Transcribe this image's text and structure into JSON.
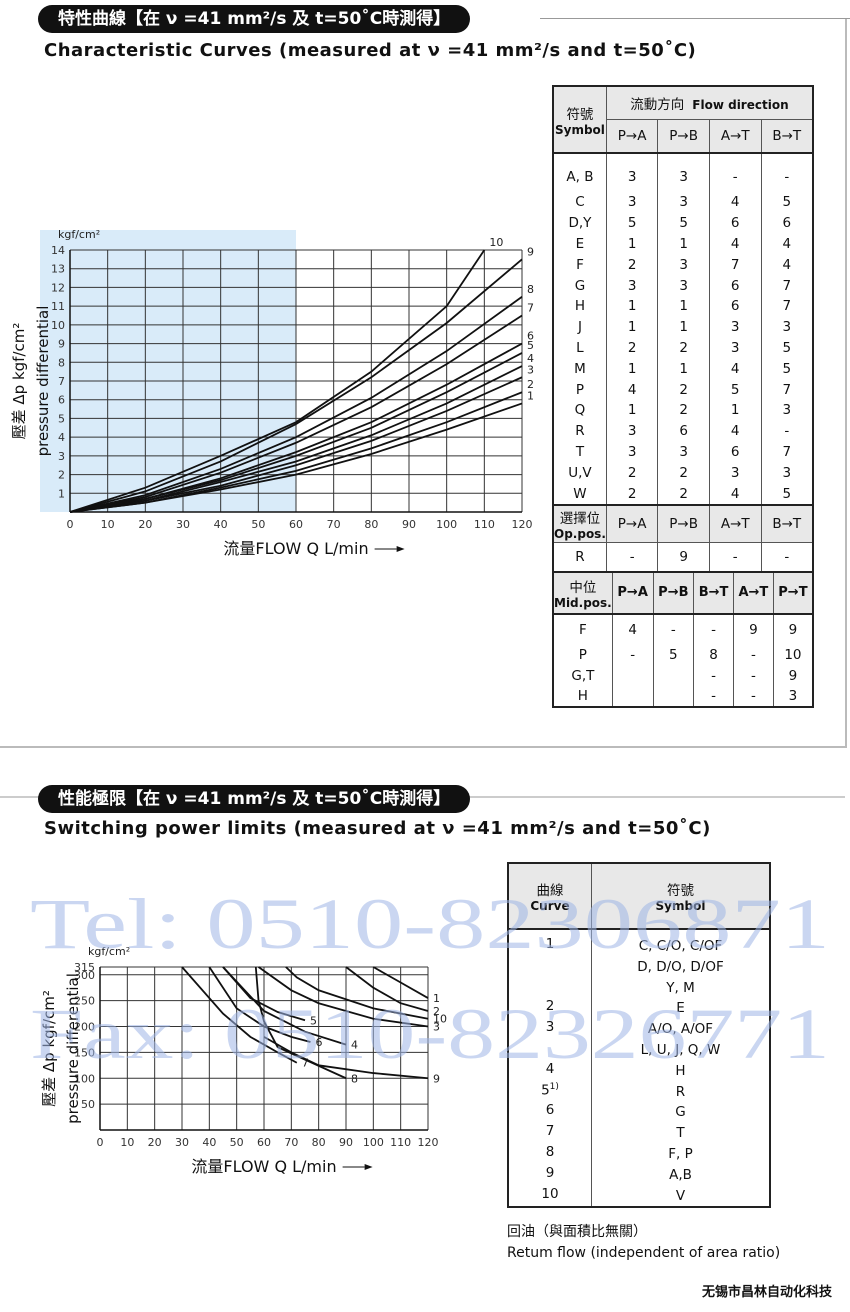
{
  "section1": {
    "heading": "特性曲線【在 ν =41 mm²/s 及 t=50˚C時測得】",
    "title": "Characteristic Curves (measured at ν =41 mm²/s and t=50˚C)",
    "chart": {
      "type": "line",
      "unit": "kgf/cm²",
      "y_label": [
        "壓差 Δp kgf/cm²",
        "pressure differential"
      ],
      "x_label": "流量FLOW Q L/min",
      "xlim": [
        0,
        120
      ],
      "ylim": [
        0,
        14
      ],
      "xticks": [
        0,
        10,
        20,
        30,
        40,
        50,
        60,
        70,
        80,
        90,
        100,
        110,
        120
      ],
      "yticks": [
        1,
        2,
        3,
        4,
        5,
        6,
        7,
        8,
        9,
        10,
        11,
        12,
        13,
        14
      ],
      "grid": true,
      "series": [
        {
          "name": "1",
          "x": [
            0,
            20,
            40,
            60,
            80,
            100,
            120
          ],
          "values": [
            0,
            0.5,
            1.2,
            2.0,
            3.1,
            4.4,
            5.8
          ]
        },
        {
          "name": "2",
          "x": [
            0,
            20,
            40,
            60,
            80,
            100,
            120
          ],
          "values": [
            0,
            0.5,
            1.3,
            2.2,
            3.4,
            4.8,
            6.4
          ]
        },
        {
          "name": "3",
          "x": [
            0,
            20,
            40,
            60,
            80,
            100,
            120
          ],
          "values": [
            0,
            0.6,
            1.4,
            2.5,
            3.8,
            5.4,
            7.2
          ]
        },
        {
          "name": "4",
          "x": [
            0,
            20,
            40,
            60,
            80,
            100,
            120
          ],
          "values": [
            0,
            0.6,
            1.6,
            2.7,
            4.1,
            5.8,
            7.8
          ]
        },
        {
          "name": "5",
          "x": [
            0,
            20,
            40,
            60,
            80,
            100,
            120
          ],
          "values": [
            0,
            0.7,
            1.7,
            3.0,
            4.5,
            6.4,
            8.5
          ]
        },
        {
          "name": "6",
          "x": [
            0,
            20,
            40,
            60,
            80,
            100,
            120
          ],
          "values": [
            0,
            0.7,
            1.8,
            3.2,
            4.8,
            6.8,
            9.0
          ]
        },
        {
          "name": "7",
          "x": [
            0,
            20,
            40,
            60,
            80,
            100,
            120
          ],
          "values": [
            0,
            0.8,
            2.1,
            3.7,
            5.6,
            7.9,
            10.5
          ]
        },
        {
          "name": "8",
          "x": [
            0,
            20,
            40,
            60,
            80,
            100,
            120
          ],
          "values": [
            0,
            0.9,
            2.3,
            4.0,
            6.1,
            8.6,
            11.5
          ]
        },
        {
          "name": "9",
          "x": [
            0,
            20,
            40,
            60,
            80,
            100,
            120
          ],
          "values": [
            0,
            1.1,
            2.7,
            4.7,
            7.2,
            10.1,
            13.5
          ]
        },
        {
          "name": "10",
          "x": [
            0,
            20,
            40,
            60,
            80,
            100,
            110
          ],
          "values": [
            0,
            1.3,
            3.0,
            4.8,
            7.5,
            11,
            14
          ]
        }
      ]
    },
    "table": {
      "symbol_header": [
        "符號",
        "Symbol"
      ],
      "flow_header": [
        "流動方向",
        "Flow direction"
      ],
      "columns": [
        "P→A",
        "P→B",
        "A→T",
        "B→T"
      ],
      "rows": [
        [
          "A, B",
          "3",
          "3",
          "-",
          "-"
        ],
        [
          "C",
          "3",
          "3",
          "4",
          "5"
        ],
        [
          "D,Y",
          "5",
          "5",
          "6",
          "6"
        ],
        [
          "E",
          "1",
          "1",
          "4",
          "4"
        ],
        [
          "F",
          "2",
          "3",
          "7",
          "4"
        ],
        [
          "G",
          "3",
          "3",
          "6",
          "7"
        ],
        [
          "H",
          "1",
          "1",
          "6",
          "7"
        ],
        [
          "J",
          "1",
          "1",
          "3",
          "3"
        ],
        [
          "L",
          "2",
          "2",
          "3",
          "5"
        ],
        [
          "M",
          "1",
          "1",
          "4",
          "5"
        ],
        [
          "P",
          "4",
          "2",
          "5",
          "7"
        ],
        [
          "Q",
          "1",
          "2",
          "1",
          "3"
        ],
        [
          "R",
          "3",
          "6",
          "4",
          "-"
        ],
        [
          "T",
          "3",
          "3",
          "6",
          "7"
        ],
        [
          "U,V",
          "2",
          "2",
          "3",
          "3"
        ],
        [
          "W",
          "2",
          "2",
          "4",
          "5"
        ]
      ],
      "op_header": [
        "選擇位",
        "Op.pos."
      ],
      "op_columns": [
        "P→A",
        "P→B",
        "A→T",
        "B→T"
      ],
      "op_rows": [
        [
          "R",
          "-",
          "9",
          "-",
          "-"
        ]
      ],
      "mid_header": [
        "中位",
        "Mid.pos."
      ],
      "mid_columns": [
        "P→A",
        "P→B",
        "B→T",
        "A→T",
        "P→T"
      ],
      "mid_rows": [
        [
          "F",
          "4",
          "-",
          "-",
          "9",
          "9"
        ],
        [
          "P",
          "-",
          "5",
          "8",
          "-",
          "10"
        ],
        [
          "G,T",
          null,
          null,
          "-",
          "-",
          "9"
        ],
        [
          "H",
          null,
          null,
          "-",
          "-",
          "3"
        ]
      ]
    }
  },
  "section2": {
    "heading": "性能極限【在 ν =41 mm²/s 及 t=50˚C時測得】",
    "title": "Switching power limits (measured at ν =41 mm²/s and t=50˚C)",
    "chart": {
      "type": "line",
      "unit": "kgf/cm²",
      "y_label": [
        "壓差 Δp kgf/cm²",
        "pressure differential"
      ],
      "x_label": "流量FLOW Q L/min",
      "xlim": [
        0,
        120
      ],
      "ylim": [
        0,
        315
      ],
      "xticks": [
        0,
        10,
        20,
        30,
        40,
        50,
        60,
        70,
        80,
        90,
        100,
        110,
        120
      ],
      "yticks": [
        50,
        100,
        150,
        200,
        250,
        300,
        315
      ],
      "grid": true,
      "series": [
        {
          "name": "1",
          "x": [
            100,
            110,
            120
          ],
          "values": [
            315,
            285,
            255
          ]
        },
        {
          "name": "2",
          "x": [
            90,
            100,
            110,
            120
          ],
          "values": [
            315,
            275,
            245,
            230
          ]
        },
        {
          "name": "3",
          "x": [
            58,
            70,
            80,
            100,
            120
          ],
          "values": [
            315,
            270,
            245,
            215,
            200
          ]
        },
        {
          "name": "4",
          "x": [
            45,
            60,
            75,
            90
          ],
          "values": [
            315,
            230,
            190,
            165
          ]
        },
        {
          "name": "5",
          "x": [
            45,
            55,
            65,
            75
          ],
          "values": [
            315,
            255,
            228,
            212
          ]
        },
        {
          "name": "6",
          "x": [
            40,
            50,
            60,
            70,
            77
          ],
          "values": [
            315,
            235,
            200,
            180,
            170
          ]
        },
        {
          "name": "7",
          "x": [
            30,
            45,
            55,
            65,
            72
          ],
          "values": [
            315,
            225,
            180,
            150,
            130
          ]
        },
        {
          "name": "8",
          "x": [
            57,
            58,
            60,
            65,
            90
          ],
          "values": [
            315,
            250,
            210,
            160,
            100
          ]
        },
        {
          "name": "9",
          "x": [
            60,
            70,
            80,
            100,
            120
          ],
          "values": [
            180,
            150,
            125,
            110,
            100
          ]
        },
        {
          "name": "10",
          "x": [
            68,
            72,
            80,
            100,
            120
          ],
          "values": [
            315,
            295,
            270,
            235,
            215
          ]
        }
      ]
    },
    "table": {
      "curve_header": [
        "曲線",
        "Curve"
      ],
      "symbol_header": [
        "符號",
        "Symbol"
      ],
      "rows": [
        {
          "curve": "1",
          "symbols": [
            "C, C/O, C/OF",
            "D, D/O, D/OF",
            "Y, M"
          ]
        },
        {
          "curve": "2",
          "symbols": [
            "E"
          ]
        },
        {
          "curve": "3",
          "symbols": [
            "A/O, A/OF",
            "L, U, J, Q, W"
          ]
        },
        {
          "curve": "4",
          "symbols": [
            "H"
          ]
        },
        {
          "curve": "5",
          "note": "1)",
          "symbols": [
            "R"
          ]
        },
        {
          "curve": "6",
          "symbols": [
            "G"
          ]
        },
        {
          "curve": "7",
          "symbols": [
            "T"
          ]
        },
        {
          "curve": "8",
          "symbols": [
            "F, P"
          ]
        },
        {
          "curve": "9",
          "symbols": [
            "A,B"
          ]
        },
        {
          "curve": "10",
          "symbols": [
            "V"
          ]
        }
      ]
    },
    "notes": [
      "回油（與面積比無關）",
      "Retum flow (independent of area ratio)"
    ]
  },
  "watermark": [
    "Tel: 0510-82306871",
    "Fax: 0510-82326771"
  ],
  "footer": "无锡市昌林自动化科技"
}
